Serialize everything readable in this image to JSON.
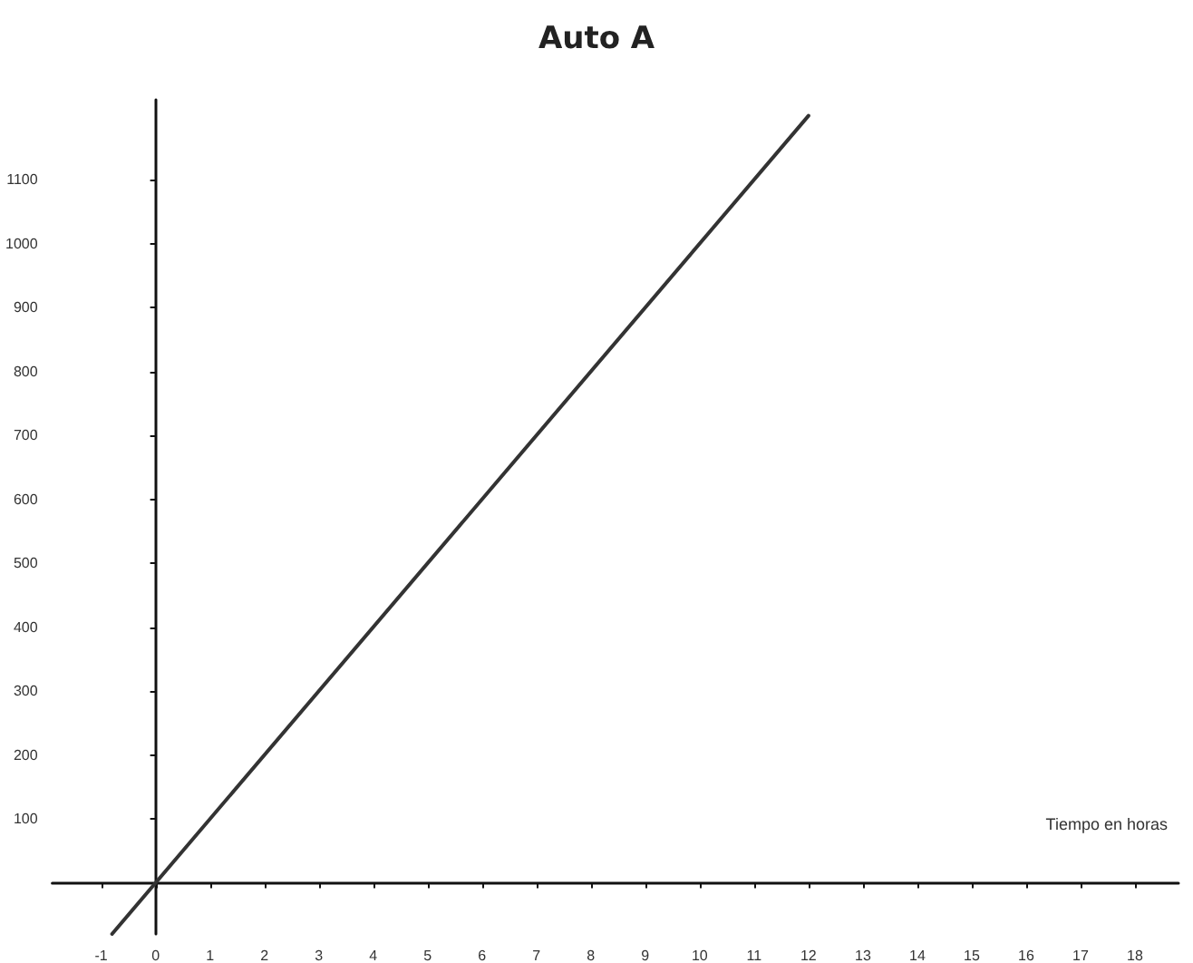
{
  "chart_data": {
    "type": "line",
    "title": "Auto A",
    "xlabel": "Tiempo en horas",
    "x": [
      -0.8,
      12
    ],
    "series": [
      {
        "color": "#333333",
        "values": [
          -80,
          1200
        ]
      }
    ],
    "xlim": [
      -1.9,
      18.8
    ],
    "ylim": [
      -80,
      1225
    ],
    "xticks": [
      -1,
      0,
      1,
      2,
      3,
      4,
      5,
      6,
      7,
      8,
      9,
      10,
      11,
      12,
      13,
      14,
      15,
      16,
      17,
      18
    ],
    "yticks": [
      100,
      200,
      300,
      400,
      500,
      600,
      700,
      800,
      900,
      1000,
      1100
    ],
    "marker": "none",
    "line_style": "solid"
  }
}
